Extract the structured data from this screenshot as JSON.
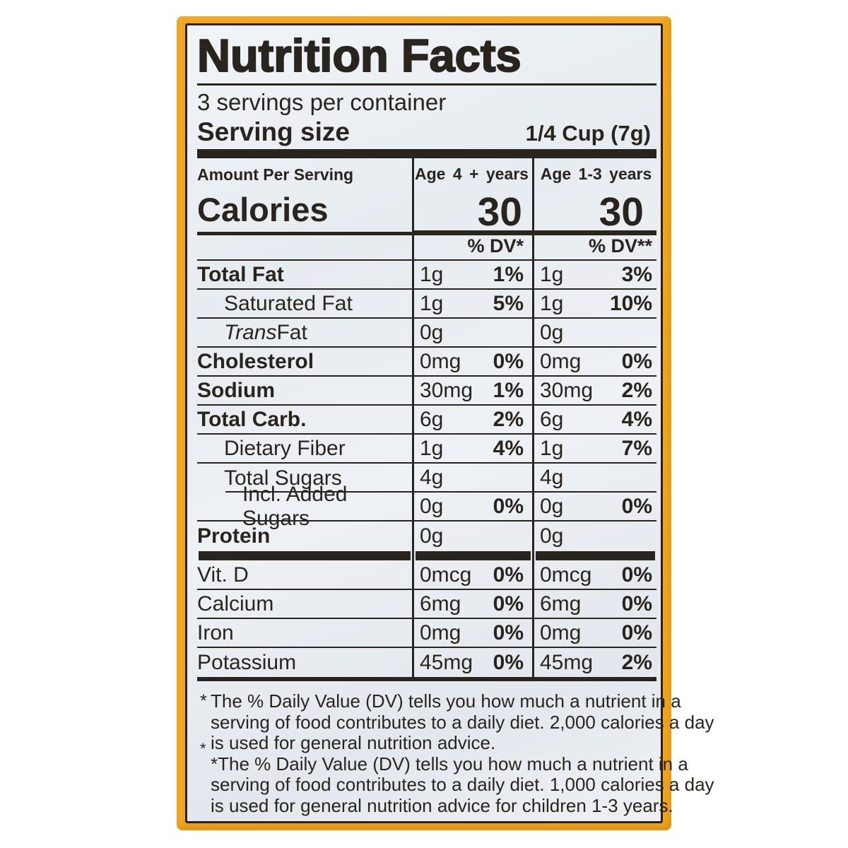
{
  "colors": {
    "package_yellow": "#F2A51F",
    "label_ink": "#2A241F",
    "label_bg": "#E9EDF1"
  },
  "label": {
    "title": "Nutrition Facts",
    "servings_per_container": "3 servings per container",
    "serving_size_label": "Serving size",
    "serving_size_value": "1/4 Cup (7g)",
    "amount_per_serving": "Amount Per Serving",
    "calories_label": "Calories",
    "columns": [
      {
        "age_header": "Age 4 + years",
        "calories": "30",
        "dv_header": "% DV*"
      },
      {
        "age_header": "Age 1-3 years",
        "calories": "30",
        "dv_header": "% DV**"
      }
    ],
    "nutrients": [
      {
        "name": "Total Fat",
        "bold": true,
        "indent": 0,
        "cols": [
          {
            "amount": "1g",
            "dv": "1%"
          },
          {
            "amount": "1g",
            "dv": "3%"
          }
        ]
      },
      {
        "name": "Saturated Fat",
        "bold": false,
        "indent": 1,
        "cols": [
          {
            "amount": "1g",
            "dv": "5%"
          },
          {
            "amount": "1g",
            "dv": "10%"
          }
        ]
      },
      {
        "name_italic": "Trans",
        "name": " Fat",
        "bold": false,
        "indent": 1,
        "cols": [
          {
            "amount": "0g",
            "dv": ""
          },
          {
            "amount": "0g",
            "dv": ""
          }
        ]
      },
      {
        "name": "Cholesterol",
        "bold": true,
        "indent": 0,
        "cols": [
          {
            "amount": "0mg",
            "dv": "0%"
          },
          {
            "amount": "0mg",
            "dv": "0%"
          }
        ]
      },
      {
        "name": "Sodium",
        "bold": true,
        "indent": 0,
        "cols": [
          {
            "amount": "30mg",
            "dv": "1%"
          },
          {
            "amount": "30mg",
            "dv": "2%"
          }
        ]
      },
      {
        "name": "Total Carb.",
        "bold": true,
        "indent": 0,
        "cols": [
          {
            "amount": "6g",
            "dv": "2%"
          },
          {
            "amount": "6g",
            "dv": "4%"
          }
        ]
      },
      {
        "name": "Dietary Fiber",
        "bold": false,
        "indent": 1,
        "cols": [
          {
            "amount": "1g",
            "dv": "4%"
          },
          {
            "amount": "1g",
            "dv": "7%"
          }
        ]
      },
      {
        "name": "Total Sugars",
        "bold": false,
        "indent": 1,
        "indent_line": true,
        "cols": [
          {
            "amount": "4g",
            "dv": ""
          },
          {
            "amount": "4g",
            "dv": ""
          }
        ]
      },
      {
        "name": "Incl. Added Sugars",
        "bold": false,
        "indent": 2,
        "cols": [
          {
            "amount": "0g",
            "dv": "0%"
          },
          {
            "amount": "0g",
            "dv": "0%"
          }
        ]
      },
      {
        "name": "Protein",
        "bold": true,
        "indent": 0,
        "cols": [
          {
            "amount": "0g",
            "dv": ""
          },
          {
            "amount": "0g",
            "dv": ""
          }
        ]
      }
    ],
    "vitamins": [
      {
        "name": "Vit. D",
        "cols": [
          {
            "amount": "0mcg",
            "dv": "0%"
          },
          {
            "amount": "0mcg",
            "dv": "0%"
          }
        ]
      },
      {
        "name": "Calcium",
        "cols": [
          {
            "amount": "6mg",
            "dv": "0%"
          },
          {
            "amount": "6mg",
            "dv": "0%"
          }
        ]
      },
      {
        "name": "Iron",
        "cols": [
          {
            "amount": "0mg",
            "dv": "0%"
          },
          {
            "amount": "0mg",
            "dv": "0%"
          }
        ]
      },
      {
        "name": "Potassium",
        "cols": [
          {
            "amount": "45mg",
            "dv": "0%"
          },
          {
            "amount": "45mg",
            "dv": "2%"
          }
        ]
      }
    ],
    "footnote_lines": [
      {
        "marker": "*",
        "low": false,
        "text": "The % Daily Value (DV) tells you how much a nutrient in a"
      },
      {
        "marker": "",
        "low": false,
        "text": "serving of food contributes to a daily diet. 2,000 calories a day"
      },
      {
        "marker": "*",
        "low": true,
        "text": "is used for general nutrition advice."
      },
      {
        "marker": "",
        "low": false,
        "text": "*The % Daily Value (DV) tells you how much a nutrient in a"
      },
      {
        "marker": "",
        "low": false,
        "text": "serving of food contributes to a daily diet. 1,000 calories a day"
      },
      {
        "marker": "",
        "low": false,
        "text": "is used for general nutrition advice for children 1-3 years."
      }
    ]
  }
}
